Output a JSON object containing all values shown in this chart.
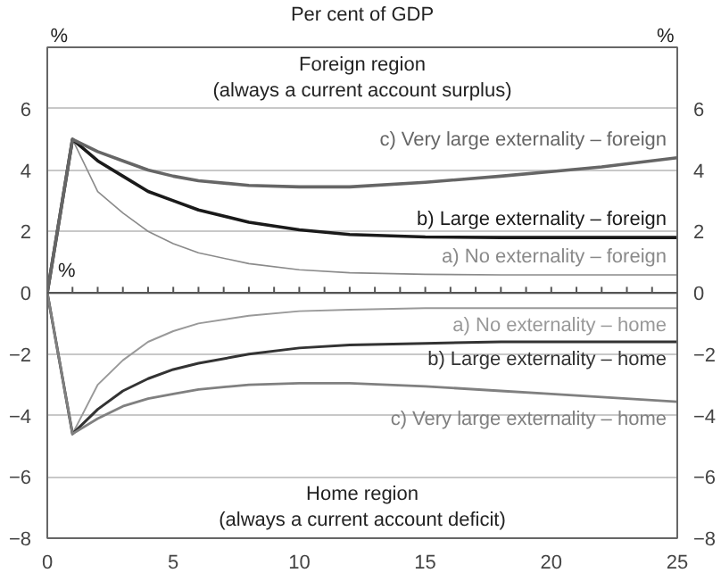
{
  "chart_data": {
    "type": "line",
    "title": "Per cent of GDP",
    "ylabel": "%",
    "y2label": "%",
    "x": [
      0,
      1,
      2,
      3,
      4,
      5,
      6,
      8,
      10,
      12,
      15,
      18,
      20,
      22,
      25
    ],
    "series": [
      {
        "name": "a) No externality – foreign",
        "color": "#8a8a8a",
        "values": [
          0,
          5,
          3.3,
          2.6,
          2.0,
          1.6,
          1.3,
          0.95,
          0.75,
          0.65,
          0.6,
          0.58,
          0.58,
          0.58,
          0.58
        ]
      },
      {
        "name": "b) Large externality – foreign",
        "color": "#1a1a1a",
        "values": [
          0,
          5,
          4.3,
          3.8,
          3.3,
          3.0,
          2.7,
          2.3,
          2.05,
          1.9,
          1.82,
          1.8,
          1.8,
          1.8,
          1.8
        ]
      },
      {
        "name": "c) Very large externality – foreign",
        "color": "#666666",
        "values": [
          0,
          5,
          4.6,
          4.3,
          4.0,
          3.8,
          3.65,
          3.5,
          3.45,
          3.45,
          3.6,
          3.8,
          3.95,
          4.1,
          4.4
        ]
      },
      {
        "name": "a) No externality – home",
        "color": "#999999",
        "values": [
          0,
          -4.6,
          -3.0,
          -2.2,
          -1.6,
          -1.25,
          -1.0,
          -0.75,
          -0.6,
          -0.55,
          -0.5,
          -0.5,
          -0.5,
          -0.5,
          -0.5
        ]
      },
      {
        "name": "b) Large externality – home",
        "color": "#333333",
        "values": [
          0,
          -4.6,
          -3.8,
          -3.2,
          -2.8,
          -2.5,
          -2.3,
          -2.0,
          -1.8,
          -1.7,
          -1.65,
          -1.6,
          -1.6,
          -1.6,
          -1.6
        ]
      },
      {
        "name": "c) Very large externality – home",
        "color": "#808080",
        "values": [
          0,
          -4.6,
          -4.1,
          -3.7,
          -3.45,
          -3.3,
          -3.15,
          -3.0,
          -2.95,
          -2.95,
          -3.05,
          -3.2,
          -3.3,
          -3.4,
          -3.55
        ]
      }
    ],
    "annotations": [
      "Foreign region\n(always a current account surplus)",
      "%",
      "Home region\n(always a current account deficit)"
    ],
    "xlim": [
      0,
      25
    ],
    "xticks": [
      0,
      5,
      10,
      15,
      20,
      25
    ],
    "ylim": [
      -8,
      8
    ],
    "yticks": [
      -8,
      -6,
      -4,
      -2,
      0,
      2,
      4,
      6
    ],
    "y2lim": [
      -8,
      8
    ],
    "y2ticks": [
      -8,
      -6,
      -4,
      -2,
      0,
      2,
      4,
      6
    ],
    "ref_lines": [
      {
        "axis": "y",
        "value": 0,
        "color": "#555555"
      }
    ],
    "grid": "y",
    "legend": false
  }
}
